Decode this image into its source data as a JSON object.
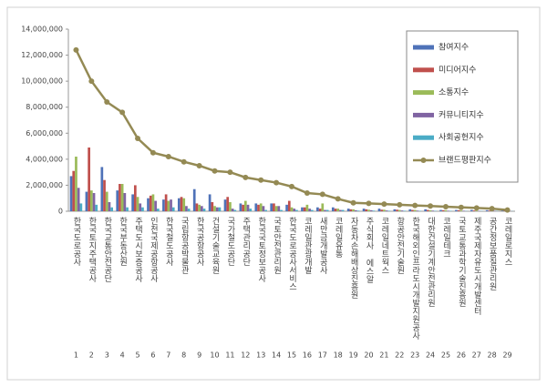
{
  "chart_data": {
    "type": "bar",
    "categories": [
      "한국도로공사",
      "한국토지주택공사",
      "한국교통안전공단",
      "한국부동산원",
      "주택도시보증공사",
      "인천국제공항공사",
      "한국철도공사",
      "국립항공박물관",
      "한국공항공사",
      "건설기술교육원",
      "국가철도공단",
      "주택관리공단",
      "한국국토정보공사",
      "국토안전관리원",
      "한국도로공사서비스",
      "코레일관광개발",
      "새만금개발공사",
      "코레일유통",
      "자동차손해배상진흥원",
      "주식회사 에스알",
      "코레일네트웍스",
      "항공안전기술원",
      "한국해외인프라도시개발지원공사",
      "대한건설기계안전관리원",
      "코레일테크",
      "국토교통과학기술진흥원",
      "제주국제자유도시개발센터",
      "공간정보품질관리원",
      "코레일로지스"
    ],
    "ranks": [
      1,
      2,
      3,
      4,
      5,
      6,
      7,
      8,
      9,
      10,
      11,
      12,
      13,
      14,
      15,
      16,
      17,
      18,
      19,
      20,
      21,
      22,
      23,
      24,
      25,
      26,
      27,
      28,
      29
    ],
    "series": [
      {
        "name": "참여지수",
        "color": "#4f72b8",
        "values": [
          2700000,
          1500000,
          3400000,
          1600000,
          1300000,
          1000000,
          900000,
          1000000,
          1700000,
          1300000,
          900000,
          600000,
          600000,
          600000,
          500000,
          300000,
          300000,
          300000,
          200000,
          200000,
          200000,
          150000,
          150000,
          150000,
          100000,
          100000,
          100000,
          80000,
          50000
        ]
      },
      {
        "name": "미디어지수",
        "color": "#c0504d",
        "values": [
          3100000,
          4900000,
          2400000,
          2100000,
          2000000,
          1200000,
          1300000,
          1100000,
          600000,
          700000,
          1100000,
          500000,
          500000,
          600000,
          800000,
          300000,
          200000,
          200000,
          150000,
          150000,
          120000,
          120000,
          100000,
          100000,
          80000,
          80000,
          60000,
          50000,
          30000
        ]
      },
      {
        "name": "소통지수",
        "color": "#9bbb59",
        "values": [
          4200000,
          1600000,
          1500000,
          2100000,
          1100000,
          1300000,
          800000,
          1000000,
          500000,
          400000,
          700000,
          800000,
          600000,
          400000,
          300000,
          500000,
          600000,
          200000,
          150000,
          120000,
          120000,
          100000,
          100000,
          80000,
          80000,
          60000,
          50000,
          40000,
          20000
        ]
      },
      {
        "name": "커뮤니티지수",
        "color": "#8064a2",
        "values": [
          1800000,
          1400000,
          700000,
          1400000,
          600000,
          800000,
          900000,
          400000,
          400000,
          300000,
          200000,
          500000,
          400000,
          400000,
          200000,
          200000,
          100000,
          100000,
          80000,
          80000,
          60000,
          60000,
          50000,
          50000,
          40000,
          40000,
          30000,
          30000,
          20000
        ]
      },
      {
        "name": "사회공헌지수",
        "color": "#4bacc6",
        "values": [
          600000,
          500000,
          300000,
          300000,
          300000,
          200000,
          300000,
          200000,
          200000,
          300000,
          100000,
          200000,
          100000,
          100000,
          100000,
          100000,
          100000,
          100000,
          50000,
          50000,
          40000,
          40000,
          30000,
          30000,
          30000,
          20000,
          20000,
          20000,
          10000
        ]
      },
      {
        "name": "브랜드평판지수",
        "color": "#948a54",
        "type": "line",
        "values": [
          12400000,
          10000000,
          8400000,
          7600000,
          5600000,
          4500000,
          4200000,
          3800000,
          3500000,
          3100000,
          3000000,
          2600000,
          2400000,
          2200000,
          1900000,
          1400000,
          1300000,
          950000,
          650000,
          600000,
          550000,
          500000,
          450000,
          400000,
          350000,
          300000,
          250000,
          200000,
          100000
        ]
      }
    ],
    "ylim": [
      0,
      14000000
    ],
    "yticks": [
      0,
      {
        "value": 2000000,
        "label": "2,000,000"
      },
      {
        "value": 4000000,
        "label": "4,000,000"
      },
      {
        "value": 6000000,
        "label": "6,000,000"
      },
      {
        "value": 8000000,
        "label": "8,000,000"
      },
      {
        "value": 10000000,
        "label": "10,000,000"
      },
      {
        "value": 12000000,
        "label": "12,000,000"
      },
      {
        "value": 14000000,
        "label": "14,000,000"
      }
    ],
    "grid": false,
    "legend": "top-right"
  }
}
